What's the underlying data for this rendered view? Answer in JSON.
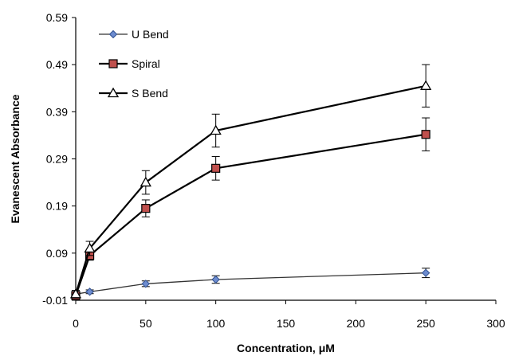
{
  "chart_data": {
    "type": "line",
    "title": "",
    "xlabel": "Concentration, μM",
    "ylabel": "Evanescent Absorbance",
    "xlim": [
      0,
      300
    ],
    "ylim": [
      -0.01,
      0.59
    ],
    "xticks": [
      0,
      50,
      100,
      150,
      200,
      250,
      300
    ],
    "yticks": [
      -0.01,
      0.09,
      0.19,
      0.29,
      0.39,
      0.49,
      0.59
    ],
    "xtick_labels": [
      "0",
      "50",
      "100",
      "150",
      "200",
      "250",
      "300"
    ],
    "ytick_labels": [
      "-0.01",
      "0.09",
      "0.19",
      "0.29",
      "0.39",
      "0.49",
      "0.59"
    ],
    "grid": false,
    "legend_position": "top-left",
    "x": [
      0,
      10,
      50,
      100,
      250
    ],
    "series": [
      {
        "name": "U Bend",
        "marker": "diamond",
        "color": "#6d8ccf",
        "line_color": "#333333",
        "values": [
          0.003,
          0.008,
          0.025,
          0.034,
          0.048
        ],
        "errors": [
          0.004,
          0.004,
          0.006,
          0.008,
          0.01
        ]
      },
      {
        "name": "Spiral",
        "marker": "square",
        "color": "#c0504d",
        "line_color": "#000000",
        "values": [
          0.0,
          0.085,
          0.185,
          0.27,
          0.342
        ],
        "errors": [
          0.008,
          0.01,
          0.018,
          0.025,
          0.035
        ]
      },
      {
        "name": "S Bend",
        "marker": "triangle",
        "color": "#ffffff",
        "line_color": "#000000",
        "values": [
          0.003,
          0.1,
          0.24,
          0.35,
          0.445
        ],
        "errors": [
          0.008,
          0.015,
          0.025,
          0.035,
          0.045
        ]
      }
    ]
  }
}
